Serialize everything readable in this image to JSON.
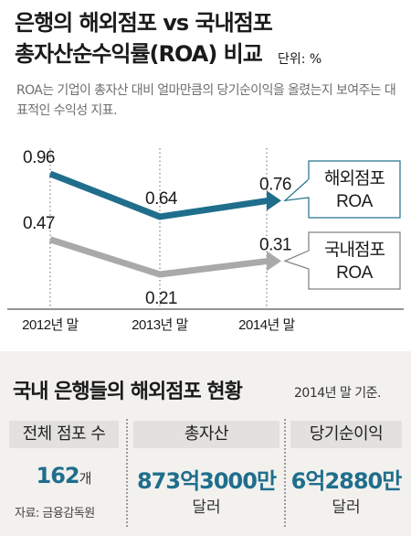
{
  "header": {
    "title_line1": "은행의 해외점포 vs 국내점포",
    "title_line2": "총자산순수익률(ROA) 비교",
    "unit": "단위: %",
    "subtitle": "ROA는 기업이 총자산 대비 얼마만큼의 당기순이익을 올렸는지 보여주는 대표적인 수익성 지표."
  },
  "chart_data": {
    "type": "line",
    "title": "은행의 해외점포 vs 국내점포 총자산순수익률(ROA) 비교",
    "xlabel": "",
    "ylabel": "",
    "categories": [
      "2012년 말",
      "2013년 말",
      "2014년 말"
    ],
    "series": [
      {
        "name": "해외점포 ROA",
        "values": [
          0.96,
          0.64,
          0.76
        ],
        "labels": [
          "0.96",
          "0.64",
          "0.76"
        ],
        "color": "#1f6e8c"
      },
      {
        "name": "국내점포 ROA",
        "values": [
          0.47,
          0.21,
          0.31
        ],
        "labels": [
          "0.47",
          "0.21",
          "0.31"
        ],
        "color": "#a9a9a9"
      }
    ],
    "ylim": [
      0,
      1.1
    ],
    "grid": false,
    "legend": "right"
  },
  "stats": {
    "title": "국내 은행들의 해외점포 현황",
    "note": "2014년 말 기준.",
    "items": [
      {
        "header": "전체 점포 수",
        "value": "162",
        "unit": "개"
      },
      {
        "header": "총자산",
        "value": "873억3000만",
        "sub": "달러"
      },
      {
        "header": "당기순이익",
        "value": "6억2880만",
        "sub": "달러"
      }
    ],
    "source": "자료: 금융감독원"
  },
  "colors": {
    "overseas": "#1f6e8c",
    "domestic": "#a9a9a9",
    "panel": "#f2f1ee",
    "header_cell": "#e2e1dd"
  }
}
